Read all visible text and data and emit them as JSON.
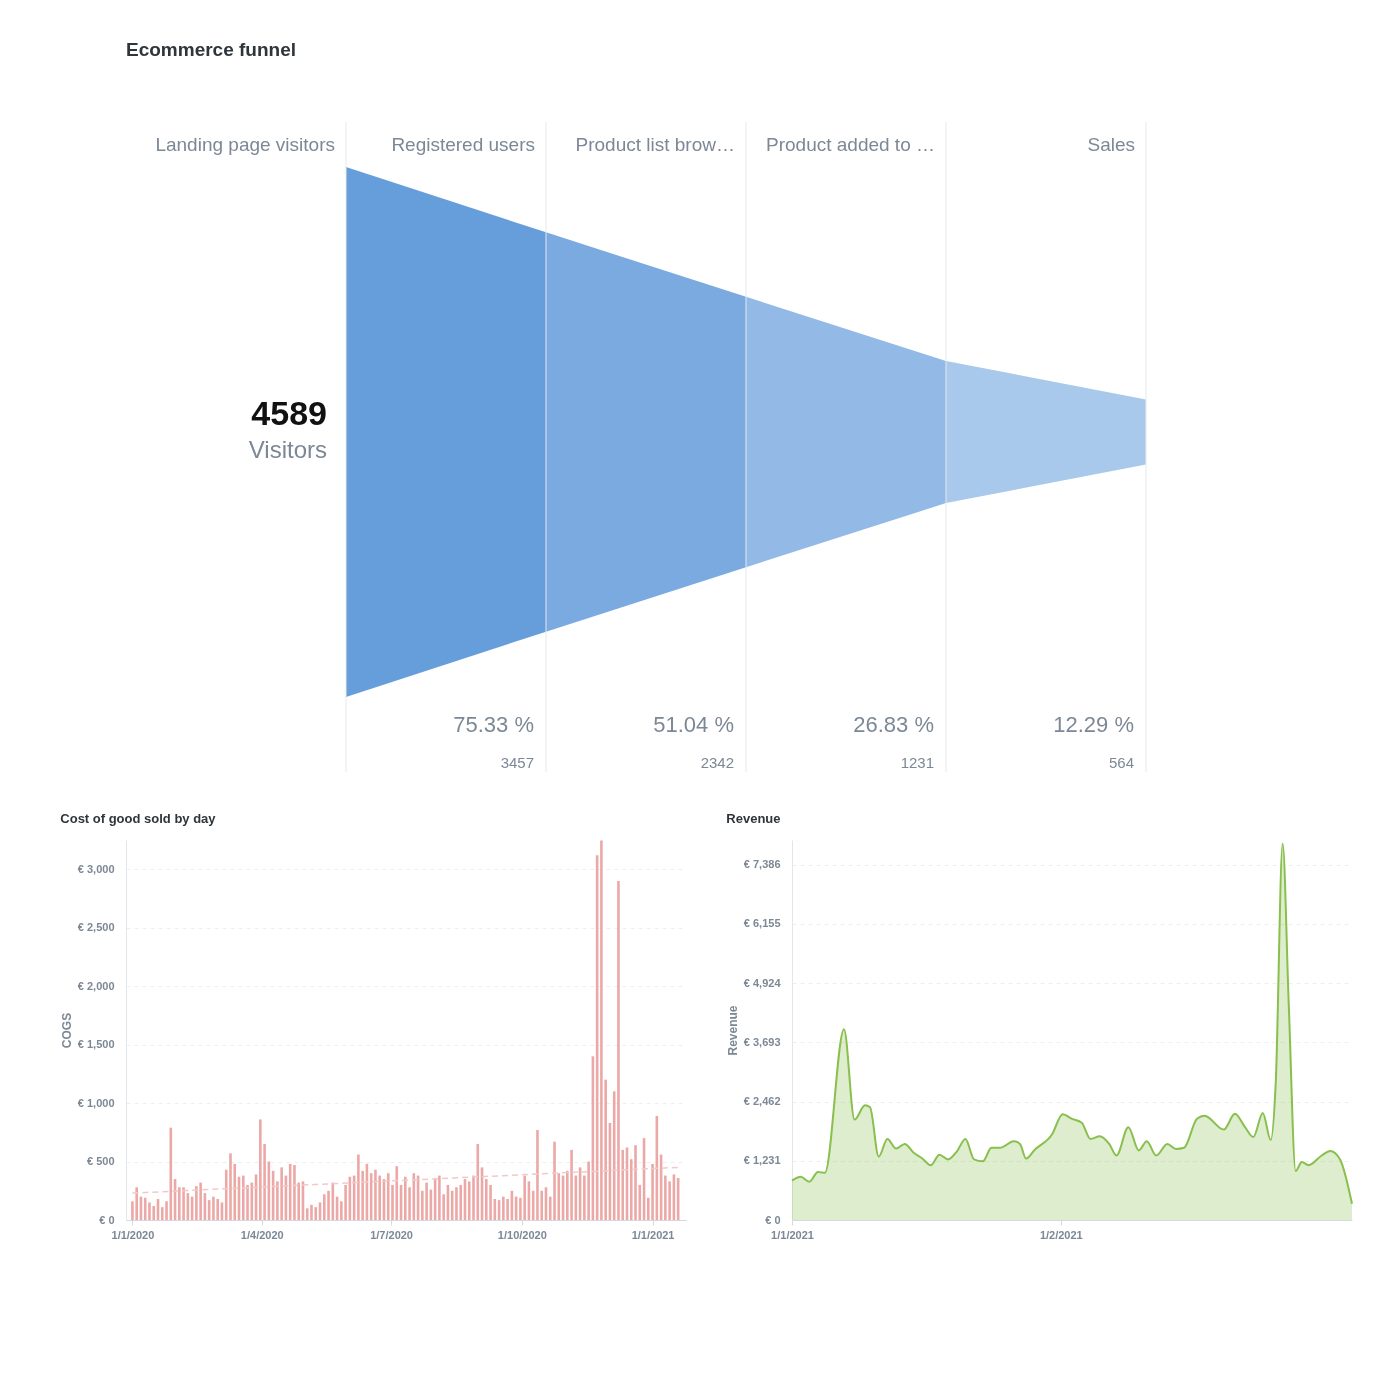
{
  "chart_data": [
    {
      "type": "other",
      "title": "Ecommerce funnel",
      "categories": [
        "Landing page visitors",
        "Registered users",
        "Product list brow…",
        "Product added to …",
        "Sales"
      ],
      "values": [
        4589,
        3457,
        2342,
        1231,
        564
      ],
      "data_labels": true,
      "colors": [
        null,
        "#669edc",
        "#7aaae0",
        "#93bae6",
        "#a9c9ec"
      ],
      "annotations": [
        "Visitors",
        {
          "text": "75.33 %",
          "x": "Registered users"
        },
        {
          "text": "51.04 %",
          "x": "Product list brow…"
        },
        {
          "text": "26.83 %",
          "x": "Product added to …"
        },
        {
          "text": "12.29 %",
          "x": "Sales"
        }
      ]
    },
    {
      "type": "bar",
      "title": "Cost of good sold by day",
      "ylabel": "COGS",
      "x": [
        "2020-01-01",
        "2020-01-04",
        "2020-01-07",
        "2020-01-10",
        "2020-01-13",
        "2020-01-16",
        "2020-01-19",
        "2020-01-22",
        "2020-01-25",
        "2020-01-28",
        "2020-01-31",
        "2020-02-03",
        "2020-02-06",
        "2020-02-09",
        "2020-02-12",
        "2020-02-15",
        "2020-02-18",
        "2020-02-21",
        "2020-02-24",
        "2020-02-27",
        "2020-03-01",
        "2020-03-04",
        "2020-03-07",
        "2020-03-10",
        "2020-03-13",
        "2020-03-16",
        "2020-03-19",
        "2020-03-22",
        "2020-03-25",
        "2020-03-28",
        "2020-03-31",
        "2020-04-03",
        "2020-04-06",
        "2020-04-09",
        "2020-04-12",
        "2020-04-15",
        "2020-04-18",
        "2020-04-21",
        "2020-04-24",
        "2020-04-27",
        "2020-04-30",
        "2020-05-03",
        "2020-05-06",
        "2020-05-09",
        "2020-05-12",
        "2020-05-15",
        "2020-05-18",
        "2020-05-21",
        "2020-05-24",
        "2020-05-27",
        "2020-05-30",
        "2020-06-02",
        "2020-06-05",
        "2020-06-08",
        "2020-06-11",
        "2020-06-14",
        "2020-06-17",
        "2020-06-20",
        "2020-06-23",
        "2020-06-26",
        "2020-06-29",
        "2020-07-02",
        "2020-07-05",
        "2020-07-08",
        "2020-07-11",
        "2020-07-14",
        "2020-07-17",
        "2020-07-20",
        "2020-07-23",
        "2020-07-26",
        "2020-07-29",
        "2020-08-01",
        "2020-08-04",
        "2020-08-07",
        "2020-08-10",
        "2020-08-13",
        "2020-08-16",
        "2020-08-19",
        "2020-08-22",
        "2020-08-25",
        "2020-08-28",
        "2020-08-31",
        "2020-09-03",
        "2020-09-06",
        "2020-09-09",
        "2020-09-12",
        "2020-09-15",
        "2020-09-18",
        "2020-09-21",
        "2020-09-24",
        "2020-09-27",
        "2020-09-30",
        "2020-10-03",
        "2020-10-06",
        "2020-10-09",
        "2020-10-12",
        "2020-10-15",
        "2020-10-18",
        "2020-10-21",
        "2020-10-24",
        "2020-10-27",
        "2020-10-30",
        "2020-11-02",
        "2020-11-05",
        "2020-11-08",
        "2020-11-11",
        "2020-11-14",
        "2020-11-17",
        "2020-11-20",
        "2020-11-23",
        "2020-11-26",
        "2020-11-29",
        "2020-12-02",
        "2020-12-05",
        "2020-12-08",
        "2020-12-11",
        "2020-12-14",
        "2020-12-17",
        "2020-12-20",
        "2020-12-23",
        "2020-12-26",
        "2020-12-29",
        "2021-01-01",
        "2021-01-04",
        "2021-01-07",
        "2021-01-10",
        "2021-01-13",
        "2021-01-16",
        "2021-01-19"
      ],
      "series": [
        {
          "color": "#eba8a6",
          "values": [
            160,
            280,
            200,
            190,
            150,
            120,
            180,
            110,
            160,
            790,
            350,
            280,
            280,
            230,
            200,
            290,
            320,
            230,
            170,
            200,
            180,
            150,
            430,
            570,
            480,
            370,
            380,
            300,
            320,
            390,
            860,
            650,
            500,
            420,
            330,
            450,
            380,
            480,
            470,
            320,
            330,
            100,
            130,
            110,
            150,
            220,
            250,
            320,
            200,
            160,
            300,
            370,
            380,
            560,
            420,
            480,
            400,
            430,
            380,
            350,
            400,
            300,
            460,
            300,
            370,
            280,
            400,
            380,
            250,
            320,
            260,
            350,
            380,
            220,
            300,
            250,
            280,
            300,
            350,
            330,
            380,
            650,
            450,
            350,
            300,
            180,
            170,
            200,
            180,
            250,
            200,
            190,
            380,
            330,
            250,
            770,
            250,
            280,
            200,
            670,
            400,
            380,
            420,
            600,
            380,
            450,
            380,
            500,
            1400,
            3120,
            3245,
            1200,
            830,
            1100,
            2900,
            600,
            620,
            520,
            640,
            300,
            700,
            190,
            480,
            890,
            560,
            380,
            330,
            390,
            360
          ]
        },
        {
          "type": "line",
          "color": "#f2c9c8",
          "line_style": "dashed",
          "x": [
            "2020-01-01",
            "2021-01-19"
          ],
          "values": [
            230,
            450
          ]
        }
      ],
      "xlim": [
        "2019-12-31",
        "2021-01-21"
      ],
      "xticks": [
        {
          "value": "2020-01-01",
          "label": "1/1/2020"
        },
        {
          "value": "2020-04-01",
          "label": "1/4/2020"
        },
        {
          "value": "2020-07-01",
          "label": "1/7/2020"
        },
        {
          "value": "2020-10-01",
          "label": "1/10/2020"
        },
        {
          "value": "2021-01-01",
          "label": "1/1/2021"
        }
      ],
      "ylim": [
        0,
        3250
      ],
      "yticks": [
        {
          "value": 0,
          "label": "€ 0"
        },
        {
          "value": 500,
          "label": "€ 500"
        },
        {
          "value": 1000,
          "label": "€ 1,000"
        },
        {
          "value": 1500,
          "label": "€ 1,500"
        },
        {
          "value": 2000,
          "label": "€ 2,000"
        },
        {
          "value": 2500,
          "label": "€ 2,500"
        },
        {
          "value": 3000,
          "label": "€ 3,000"
        }
      ],
      "grid": "y"
    },
    {
      "type": "area",
      "title": "Revenue",
      "ylabel": "Revenue",
      "x": [
        "2021-01-01",
        "2021-01-02",
        "2021-01-03",
        "2021-01-04",
        "2021-01-04T19:00",
        "2021-01-07",
        "2021-01-08T05:00",
        "2021-01-09T10:00",
        "2021-01-10",
        "2021-01-11",
        "2021-01-12",
        "2021-01-13",
        "2021-01-14",
        "2021-01-15",
        "2021-01-16",
        "2021-01-17",
        "2021-01-18",
        "2021-01-19",
        "2021-01-20",
        "2021-01-21",
        "2021-01-22",
        "2021-01-23",
        "2021-01-24",
        "2021-01-25",
        "2021-01-26T14:00",
        "2021-01-27T07:00",
        "2021-01-28",
        "2021-01-29",
        "2021-01-31",
        "2021-02-01T05:00",
        "2021-02-02T07:00",
        "2021-02-03T10:00",
        "2021-02-04T10:00",
        "2021-02-05T12:00",
        "2021-02-06T14:00",
        "2021-02-07T10:00",
        "2021-02-08T19:00",
        "2021-02-10",
        "2021-02-10T22:00",
        "2021-02-12",
        "2021-02-13T07:00",
        "2021-02-14T07:00",
        "2021-02-15T05:00",
        "2021-02-16T17:00",
        "2021-02-17T14:00",
        "2021-02-19T19:00",
        "2021-02-21T02:00",
        "2021-02-22T05:00",
        "2021-02-23T05:00",
        "2021-02-24T07:00",
        "2021-02-25T05:00",
        "2021-02-25T19:00",
        "2021-02-26T14:00",
        "2021-02-27T07:00",
        "2021-02-28T02:00",
        "2021-02-28T19:00",
        "2021-03-01T14:00",
        "2021-03-03T02:00",
        "2021-03-04T02:00",
        "2021-03-05T05:00",
        "2021-03-06T14:00"
      ],
      "series": [
        {
          "color": "#88bf4d",
          "values": [
            819,
            900,
            795,
            1000,
            980,
            3966,
            2087,
            2384,
            2344,
            1317,
            1686,
            1485,
            1581,
            1405,
            1284,
            1140,
            1357,
            1260,
            1421,
            1686,
            1260,
            1220,
            1501,
            1501,
            1638,
            1581,
            1276,
            1461,
            1782,
            2200,
            2103,
            2023,
            1686,
            1742,
            1581,
            1341,
            1927,
            1445,
            1638,
            1341,
            1581,
            1477,
            1501,
            2103,
            2168,
            1879,
            2208,
            1943,
            1726,
            2224,
            1662,
            2866,
            7827,
            4472,
            1020,
            1204,
            1140,
            1341,
            1437,
            1260,
            337
          ]
        }
      ],
      "xlim": [
        "2021-01-01",
        "2021-03-06T14:00"
      ],
      "xticks": [
        {
          "value": "2021-01-01",
          "label": "1/1/2021"
        },
        {
          "value": "2021-02-01",
          "label": "1/2/2021"
        }
      ],
      "ylim": [
        0,
        7900
      ],
      "yticks": [
        {
          "value": 0,
          "label": "€ 0"
        },
        {
          "value": 1231,
          "label": "€ 1,231"
        },
        {
          "value": 2462,
          "label": "€ 2,462"
        },
        {
          "value": 3693,
          "label": "€ 3,693"
        },
        {
          "value": 4924,
          "label": "€ 4,924"
        },
        {
          "value": 6155,
          "label": "€ 6,155"
        },
        {
          "value": 7386,
          "label": "€ 7,386"
        }
      ],
      "grid": "y"
    }
  ]
}
